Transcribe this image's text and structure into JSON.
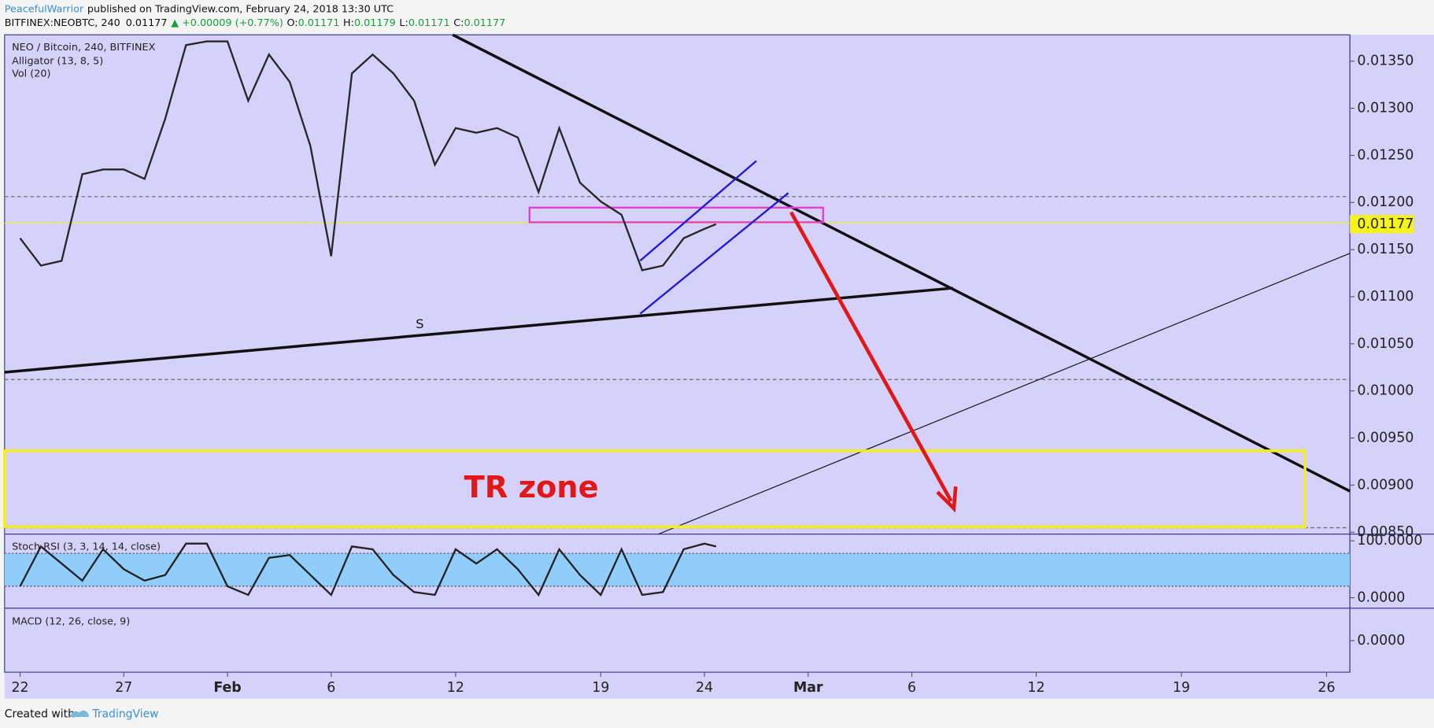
{
  "header": {
    "author": "PeacefulWarrior",
    "published": "published on TradingView.com, February 24, 2018 13:30 UTC",
    "symbol": "BITFINEX:NEOBTC, 240",
    "last": "0.01177",
    "change": "▲ +0.00009 (+0.77%)",
    "ohlc": [
      {
        "label": "O:",
        "value": "0.01171"
      },
      {
        "label": "H:",
        "value": "0.01179"
      },
      {
        "label": "L:",
        "value": "0.01171"
      },
      {
        "label": "C:",
        "value": "0.01177"
      }
    ]
  },
  "chart_data": [
    {
      "type": "line",
      "title": "NEO / Bitcoin, 240, BITFINEX",
      "indicators": [
        "Alligator (13, 8, 5)",
        "Vol (20)"
      ],
      "color": "#262626",
      "x": [
        "2018-01-22",
        "2018-01-23",
        "2018-01-24",
        "2018-01-25",
        "2018-01-26",
        "2018-01-27",
        "2018-01-28",
        "2018-01-29",
        "2018-01-30",
        "2018-01-31",
        "2018-02-01",
        "2018-02-02",
        "2018-02-03",
        "2018-02-04",
        "2018-02-05",
        "2018-02-06",
        "2018-02-07",
        "2018-02-08",
        "2018-02-09",
        "2018-02-10",
        "2018-02-11",
        "2018-02-12",
        "2018-02-13",
        "2018-02-14",
        "2018-02-15",
        "2018-02-16",
        "2018-02-17",
        "2018-02-18",
        "2018-02-19",
        "2018-02-20",
        "2018-02-21",
        "2018-02-22",
        "2018-02-23",
        "2018-02-24",
        "2018-02-24T13:30"
      ],
      "values": [
        0.01162,
        0.01133,
        0.01138,
        0.0123,
        0.01235,
        0.01235,
        0.01225,
        0.01289,
        0.01367,
        0.01371,
        0.01371,
        0.01308,
        0.01357,
        0.01328,
        0.0126,
        0.01143,
        0.01337,
        0.01357,
        0.01337,
        0.01308,
        0.0124,
        0.01279,
        0.01274,
        0.01279,
        0.01269,
        0.01211,
        0.01279,
        0.01221,
        0.01201,
        0.01187,
        0.01128,
        0.01133,
        0.01162,
        0.01172,
        0.01177
      ],
      "last_price": {
        "value": 0.01177,
        "label": "0.01177"
      },
      "xlim": [
        "2018-01-21T06:00",
        "2018-03-27T03:00"
      ],
      "xticks": [
        {
          "value": "2018-01-22",
          "label": "22"
        },
        {
          "value": "2018-01-27",
          "label": "27"
        },
        {
          "value": "2018-02-01",
          "label": "Feb"
        },
        {
          "value": "2018-02-06",
          "label": "6"
        },
        {
          "value": "2018-02-12",
          "label": "12"
        },
        {
          "value": "2018-02-19",
          "label": "19"
        },
        {
          "value": "2018-02-24",
          "label": "24"
        },
        {
          "value": "2018-03-01",
          "label": "Mar"
        },
        {
          "value": "2018-03-06",
          "label": "6"
        },
        {
          "value": "2018-03-12",
          "label": "12"
        },
        {
          "value": "2018-03-19",
          "label": "19"
        },
        {
          "value": "2018-03-26",
          "label": "26"
        }
      ],
      "ylim": [
        0.00848,
        0.01378
      ],
      "yticks": [
        {
          "value": 0.0085,
          "label": "0.00850"
        },
        {
          "value": 0.009,
          "label": "0.00900"
        },
        {
          "value": 0.0095,
          "label": "0.00950"
        },
        {
          "value": 0.01,
          "label": "0.01000"
        },
        {
          "value": 0.0105,
          "label": "0.01050"
        },
        {
          "value": 0.011,
          "label": "0.01100"
        },
        {
          "value": 0.0115,
          "label": "0.01150"
        },
        {
          "value": 0.012,
          "label": "0.01200"
        },
        {
          "value": 0.0125,
          "label": "0.01250"
        },
        {
          "value": 0.013,
          "label": "0.01300"
        },
        {
          "value": 0.0135,
          "label": "0.01350"
        }
      ],
      "annotations": [
        "S",
        "TR zone"
      ]
    },
    {
      "type": "line",
      "title": "Stoch RSI (3, 3, 14, 14, close)",
      "color": "#222222",
      "x": [
        "2018-01-22",
        "2018-01-23",
        "2018-01-24",
        "2018-01-25",
        "2018-01-26",
        "2018-01-27",
        "2018-01-28",
        "2018-01-29",
        "2018-01-30",
        "2018-01-31",
        "2018-02-01",
        "2018-02-02",
        "2018-02-03",
        "2018-02-04",
        "2018-02-05",
        "2018-02-06",
        "2018-02-07",
        "2018-02-08",
        "2018-02-09",
        "2018-02-10",
        "2018-02-11",
        "2018-02-12",
        "2018-02-13",
        "2018-02-14",
        "2018-02-15",
        "2018-02-16",
        "2018-02-17",
        "2018-02-18",
        "2018-02-19",
        "2018-02-20",
        "2018-02-21",
        "2018-02-22",
        "2018-02-23",
        "2018-02-24",
        "2018-02-24T13:30"
      ],
      "values": [
        20,
        90,
        60,
        30,
        85,
        50,
        30,
        40,
        95,
        95,
        20,
        5,
        70,
        75,
        40,
        5,
        90,
        85,
        40,
        10,
        5,
        85,
        60,
        85,
        50,
        5,
        85,
        40,
        5,
        85,
        5,
        10,
        85,
        95,
        90
      ],
      "ylim": [
        -18.3,
        111.7
      ],
      "yticks": [
        {
          "value": 0,
          "label": "0.0000"
        },
        {
          "value": 100,
          "label": "100.0000"
        }
      ]
    },
    {
      "type": "line",
      "title": "MACD (12, 26, close, 9)",
      "ylim": [
        -0.00034,
        0.00035
      ],
      "yticks": [
        {
          "value": 0,
          "label": "0.0000"
        }
      ]
    }
  ],
  "footer": {
    "created": "Created with",
    "brand": "TradingView"
  }
}
